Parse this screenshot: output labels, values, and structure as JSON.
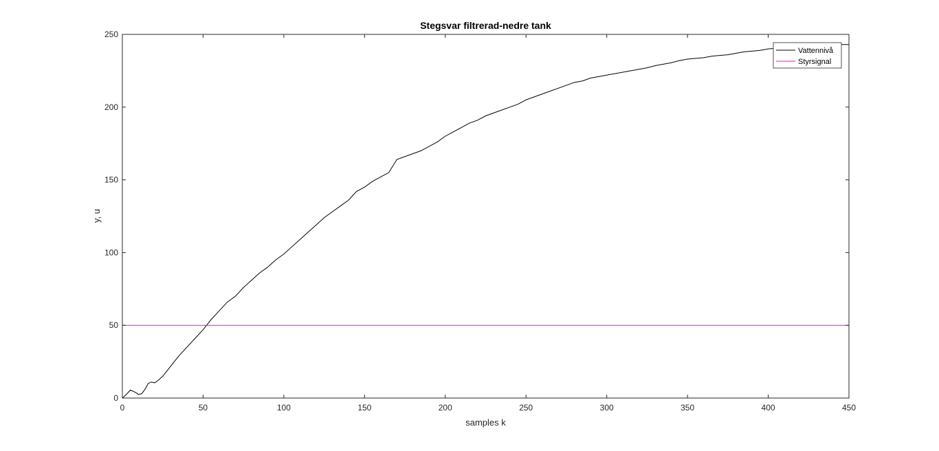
{
  "chart_data": {
    "type": "line",
    "title": "Stegsvar filtrerad-nedre tank",
    "xlabel": "samples k",
    "ylabel": "y, u",
    "xlim": [
      0,
      450
    ],
    "ylim": [
      0,
      250
    ],
    "xticks": [
      0,
      50,
      100,
      150,
      200,
      250,
      300,
      350,
      400,
      450
    ],
    "yticks": [
      0,
      50,
      100,
      150,
      200,
      250
    ],
    "grid": false,
    "legend_position": "top-right",
    "series": [
      {
        "name": "Vattennivå",
        "color": "#000000",
        "x": [
          0,
          2,
          5,
          8,
          10,
          12,
          14,
          16,
          18,
          20,
          22,
          25,
          30,
          35,
          40,
          45,
          50,
          55,
          60,
          65,
          70,
          75,
          80,
          85,
          90,
          95,
          100,
          105,
          110,
          115,
          120,
          125,
          130,
          135,
          140,
          145,
          150,
          155,
          160,
          165,
          170,
          175,
          180,
          185,
          190,
          195,
          200,
          205,
          210,
          215,
          220,
          225,
          230,
          235,
          240,
          245,
          250,
          255,
          260,
          265,
          270,
          275,
          280,
          285,
          290,
          295,
          300,
          305,
          310,
          315,
          320,
          325,
          330,
          335,
          340,
          345,
          350,
          355,
          360,
          365,
          370,
          375,
          380,
          385,
          390,
          395,
          400,
          405,
          410,
          415,
          420,
          425,
          430,
          435,
          440,
          445,
          450
        ],
        "y": [
          0,
          2,
          5.5,
          4,
          2.5,
          3,
          6,
          10,
          11,
          10.5,
          12,
          15,
          22,
          29,
          35,
          41,
          47,
          54,
          60,
          66,
          70,
          76,
          81,
          86,
          90,
          95,
          99,
          104,
          109,
          114,
          119,
          124,
          128,
          132,
          136,
          142,
          145,
          149,
          152,
          155,
          164,
          166,
          168,
          170,
          173,
          176,
          180,
          183,
          186,
          189,
          191,
          194,
          196,
          198,
          200,
          202,
          205,
          207,
          209,
          211,
          213,
          215,
          217,
          218,
          220,
          221,
          222,
          223,
          224,
          225,
          226,
          227,
          228.5,
          229.5,
          230.5,
          232,
          233,
          233.5,
          234,
          235,
          235.5,
          236,
          237,
          238,
          238.5,
          239,
          240,
          240.5,
          241,
          241.5,
          242,
          242,
          242.5,
          243,
          242.5,
          243,
          243
        ]
      },
      {
        "name": "Styrsignal",
        "color": "#ff00ff",
        "x": [
          0,
          450
        ],
        "y": [
          50,
          50
        ]
      }
    ]
  }
}
